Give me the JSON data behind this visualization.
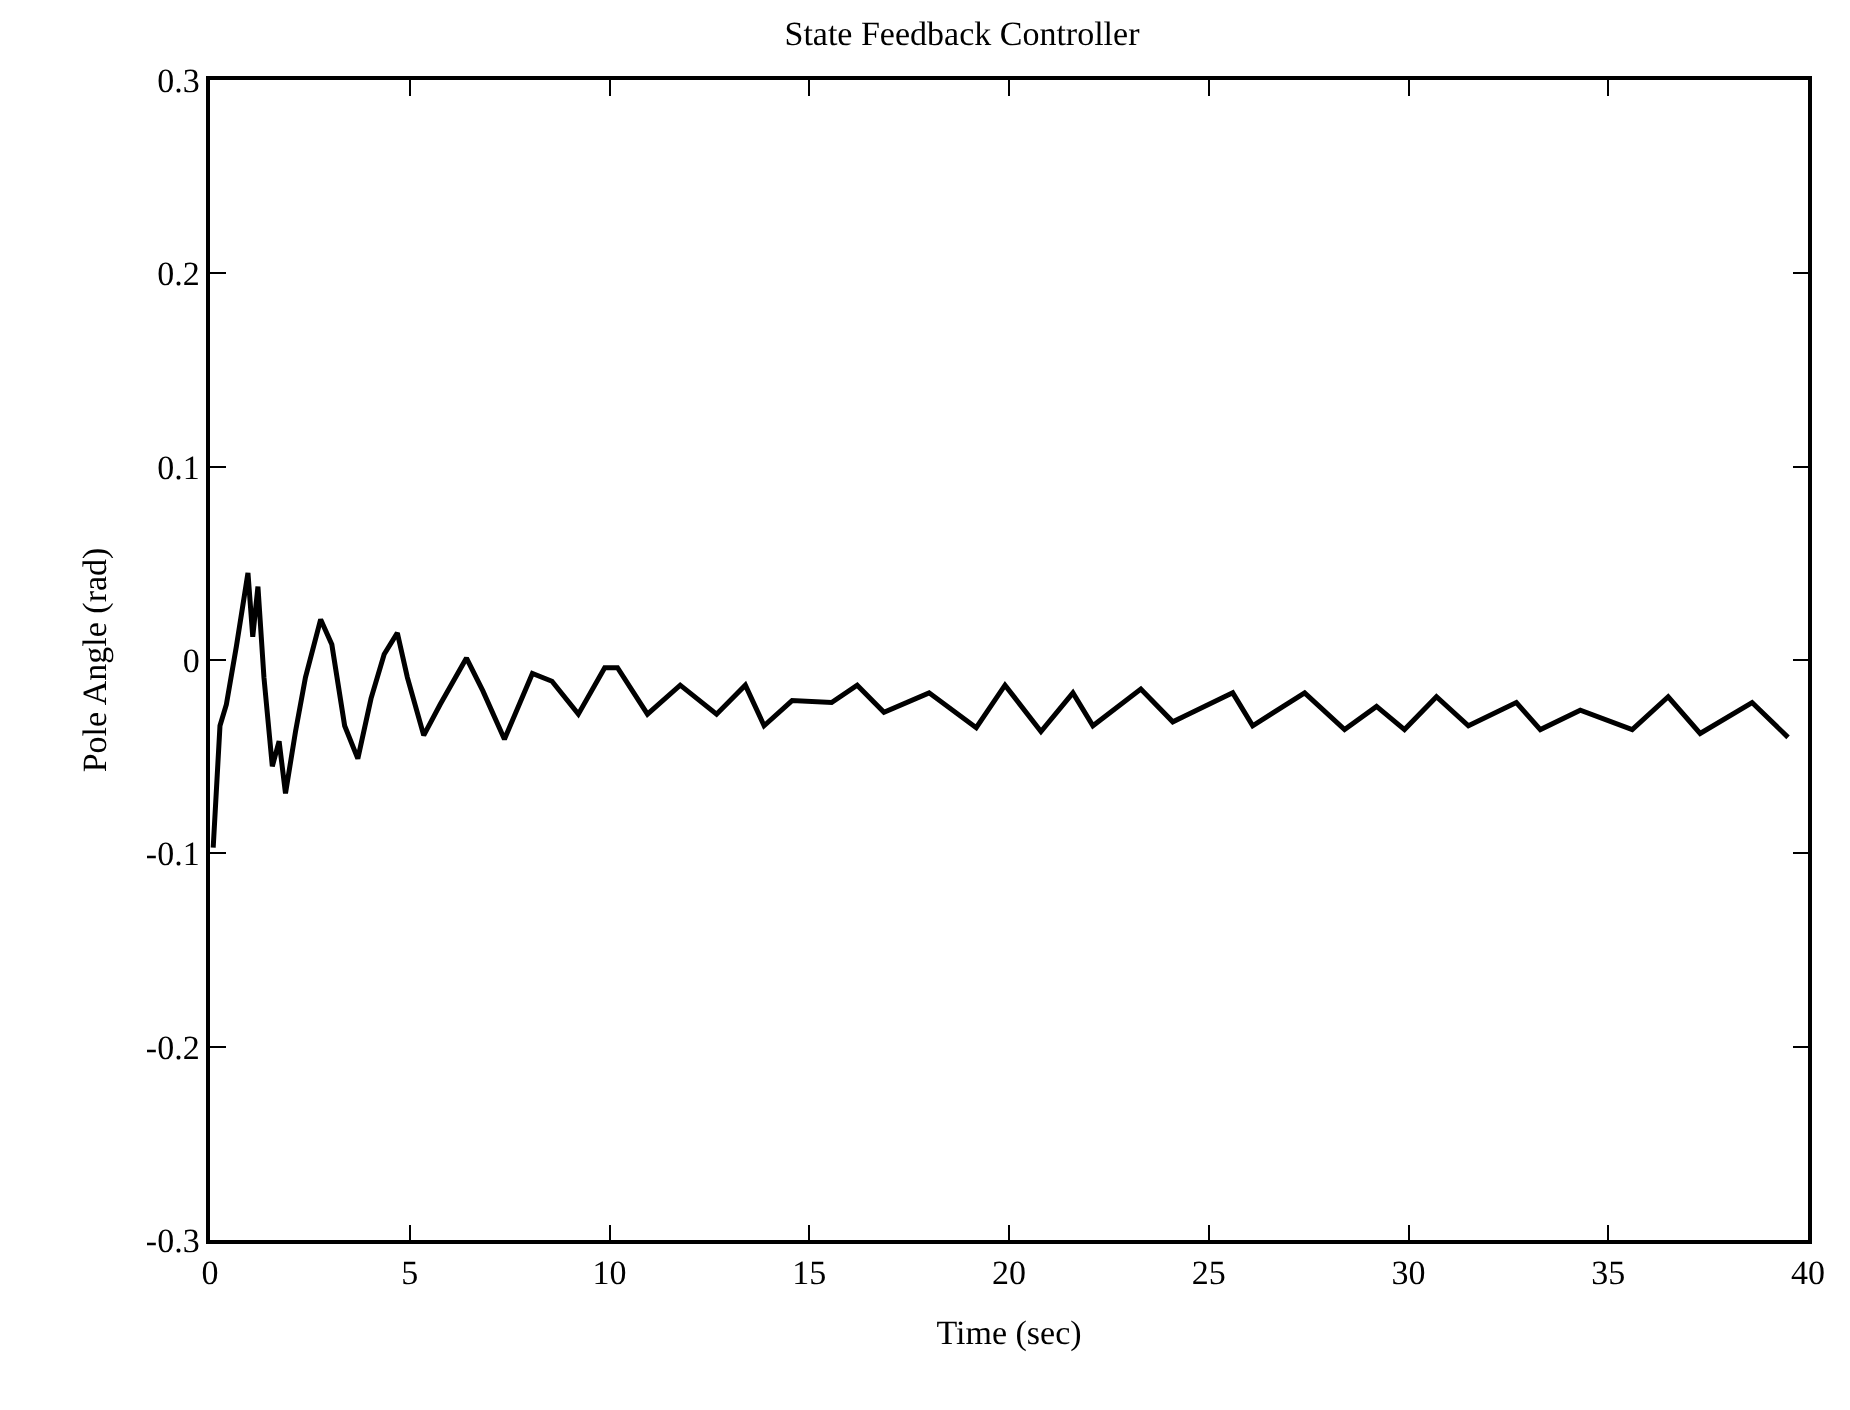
{
  "chart_data": {
    "type": "line",
    "title": "State Feedback Controller",
    "xlabel": "Time (sec)",
    "ylabel": "Pole Angle (rad)",
    "x": [
      0.08,
      0.25,
      0.41,
      0.66,
      0.95,
      1.07,
      1.2,
      1.35,
      1.56,
      1.73,
      1.89,
      2.14,
      2.39,
      2.77,
      3.05,
      3.37,
      3.7,
      4.03,
      4.36,
      4.69,
      4.94,
      5.35,
      5.76,
      6.42,
      6.83,
      7.37,
      8.07,
      8.56,
      9.22,
      9.88,
      10.2,
      10.95,
      11.77,
      12.68,
      13.4,
      13.87,
      14.57,
      15.56,
      16.2,
      16.87,
      18.0,
      19.18,
      19.9,
      20.8,
      21.6,
      22.1,
      23.3,
      24.1,
      24.4,
      25.6,
      26.1,
      27.4,
      28.4,
      29.2,
      29.9,
      30.7,
      31.5,
      32.7,
      33.3,
      34.3,
      35.6,
      36.5,
      37.3,
      38.6,
      39.5
    ],
    "series": [
      {
        "color": "#000000",
        "values": [
          -0.097,
          -0.034,
          -0.023,
          0.007,
          0.045,
          0.012,
          0.038,
          -0.009,
          -0.055,
          -0.042,
          -0.069,
          -0.037,
          -0.009,
          0.021,
          0.008,
          -0.034,
          -0.051,
          -0.02,
          0.003,
          0.014,
          -0.009,
          -0.039,
          -0.023,
          0.001,
          -0.016,
          -0.041,
          -0.007,
          -0.011,
          -0.028,
          -0.004,
          -0.004,
          -0.028,
          -0.013,
          -0.028,
          -0.013,
          -0.034,
          -0.021,
          -0.022,
          -0.013,
          -0.027,
          -0.017,
          -0.035,
          -0.013,
          -0.037,
          -0.017,
          -0.034,
          -0.015,
          -0.032,
          -0.029,
          -0.017,
          -0.034,
          -0.017,
          -0.036,
          -0.024,
          -0.036,
          -0.019,
          -0.034,
          -0.022,
          -0.036,
          -0.026,
          -0.036,
          -0.019,
          -0.038,
          -0.022,
          -0.04
        ]
      }
    ],
    "xlim": [
      0,
      40
    ],
    "xticks": [
      0,
      5,
      10,
      15,
      20,
      25,
      30,
      35,
      40
    ],
    "ylim": [
      -0.3,
      0.3
    ],
    "yticks": [
      -0.3,
      -0.2,
      -0.1,
      0,
      0.1,
      0.2,
      0.3
    ],
    "marker": "none",
    "line_style": "solid"
  }
}
